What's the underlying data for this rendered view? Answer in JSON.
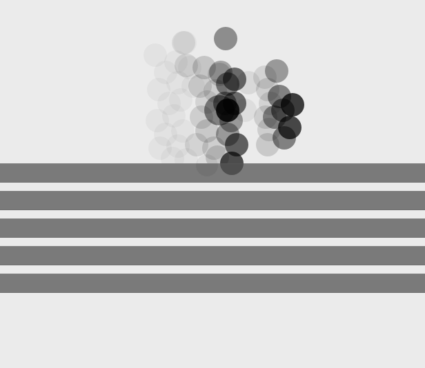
{
  "scene": {
    "background_color": "#ebebeb",
    "stripe_color": "#7a7a7a",
    "circle_color": "#000000",
    "stripe_count": 5
  }
}
